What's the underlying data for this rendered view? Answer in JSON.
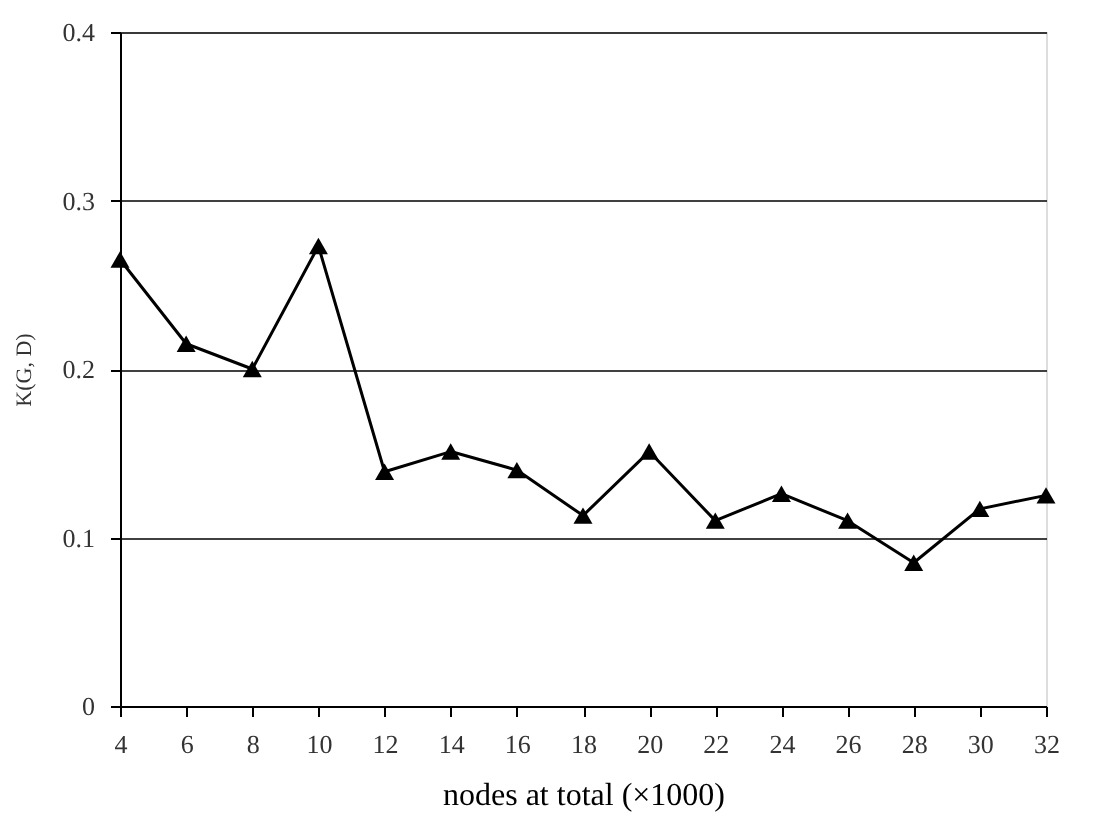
{
  "chart_data": {
    "type": "line",
    "xlabel": "nodes at total (×1000)",
    "ylabel": "K(G, D)",
    "x": [
      4,
      6,
      8,
      10,
      12,
      14,
      16,
      18,
      20,
      22,
      24,
      26,
      28,
      30,
      32
    ],
    "series": [
      {
        "color": "#000000",
        "values": [
          0.265,
          0.215,
          0.2,
          0.273,
          0.139,
          0.151,
          0.14,
          0.113,
          0.151,
          0.11,
          0.126,
          0.11,
          0.085,
          0.117,
          0.125
        ]
      }
    ],
    "xlim": [
      4,
      32
    ],
    "xticks": [
      4,
      6,
      8,
      10,
      12,
      14,
      16,
      18,
      20,
      22,
      24,
      26,
      28,
      30,
      32
    ],
    "ylim": [
      0,
      0.4
    ],
    "yticks": [
      0,
      0.1,
      0.2,
      0.3,
      0.4
    ],
    "grid": "y",
    "marker": "triangle",
    "line_style": "solid",
    "legend": false
  }
}
